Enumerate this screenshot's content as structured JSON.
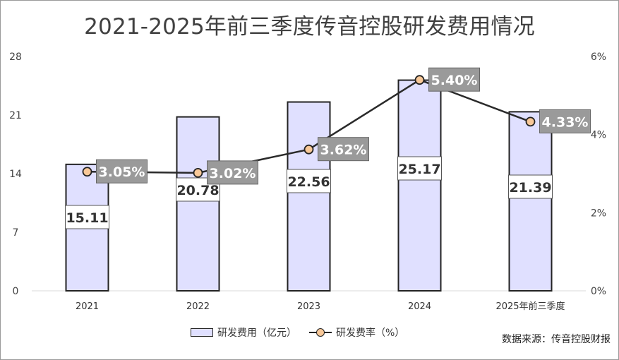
{
  "title": "2021-2025年前三季度传音控股研发费用情况",
  "source": "数据来源：传音控股财报",
  "legend": {
    "bar_label": "研发费用（亿元）",
    "line_label": "研发费率（%）"
  },
  "chart_data": {
    "type": "bar",
    "title": "2021-2025年前三季度传音控股研发费用情况",
    "categories": [
      "2021",
      "2022",
      "2023",
      "2024",
      "2025年前三季度"
    ],
    "series": [
      {
        "name": "研发费用（亿元）",
        "type": "bar",
        "axis": "left",
        "values": [
          15.11,
          20.78,
          22.56,
          25.17,
          21.39
        ],
        "labels": [
          "15.11",
          "20.78",
          "22.56",
          "25.17",
          "21.39"
        ],
        "color": "#e0e0ff"
      },
      {
        "name": "研发费率（%）",
        "type": "line",
        "axis": "right",
        "values": [
          3.05,
          3.02,
          3.62,
          5.4,
          4.33
        ],
        "labels": [
          "3.05%",
          "3.02%",
          "3.62%",
          "5.40%",
          "4.33%"
        ],
        "color": "#f8c898"
      }
    ],
    "y_left": {
      "ylim": [
        0,
        28
      ],
      "ticks": [
        "0",
        "7",
        "14",
        "21",
        "28"
      ],
      "tick_values": [
        0,
        7,
        14,
        21,
        28
      ]
    },
    "y_right": {
      "ylim": [
        0,
        6
      ],
      "ticks": [
        "0%",
        "2%",
        "4%",
        "6%"
      ],
      "tick_values": [
        0,
        2,
        4,
        6
      ]
    },
    "grid": false,
    "legend_position": "bottom"
  }
}
